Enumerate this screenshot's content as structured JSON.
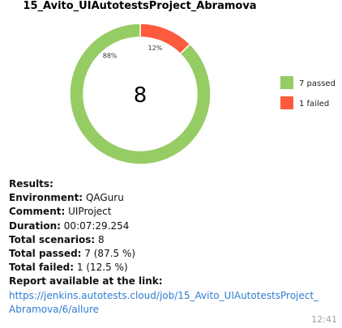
{
  "chart_data": {
    "type": "pie",
    "title": "15_Avito_UIAutotestsProject_Abramova",
    "center_label": "8",
    "slices": [
      {
        "label": "7 passed",
        "value": 7,
        "percent_label": "88%",
        "color": "#96cc64"
      },
      {
        "label": "1 failed",
        "value": 1,
        "percent_label": "12%",
        "color": "#fd5a3e"
      }
    ],
    "legend_position": "right"
  },
  "report": {
    "heading": "Results:",
    "environment": {
      "label": "Environment:",
      "value": "QAGuru"
    },
    "comment": {
      "label": "Comment:",
      "value": "UIProject"
    },
    "duration": {
      "label": "Duration:",
      "value": "00:07:29.254"
    },
    "total_scenarios": {
      "label": "Total scenarios:",
      "value": "8"
    },
    "total_passed": {
      "label": "Total passed:",
      "value": "7 (87.5 %)"
    },
    "total_failed": {
      "label": "Total failed:",
      "value": "1 (12.5 %)"
    },
    "link_label": "Report available at the link:",
    "link": "https://jenkins.autotests.cloud/job/15_Avito_UIAutotestsProject_Abramova/6/allure"
  },
  "timestamp": "12:41"
}
